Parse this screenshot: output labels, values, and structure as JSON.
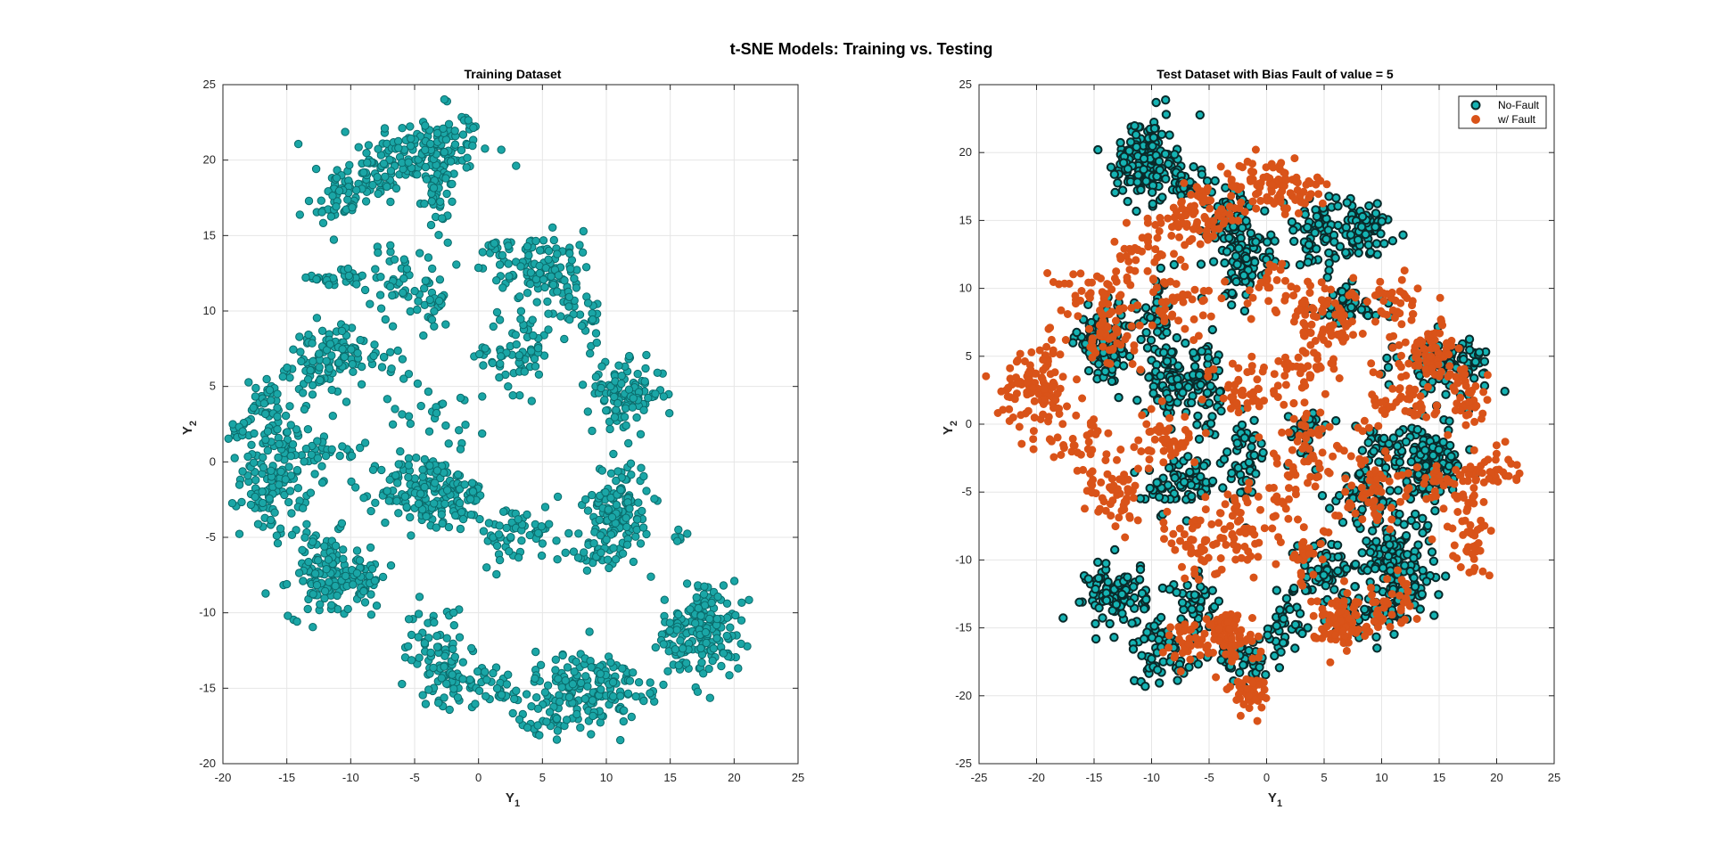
{
  "figure": {
    "title": "t-SNE Models: Training vs. Testing",
    "colors": {
      "nofault_face": "#1aa6a6",
      "nofault_edge": "#0b6b6b",
      "fault_face": "#d95319",
      "testnf_face": "#15b3b3",
      "testnf_edge": "#0a2a2a"
    }
  },
  "chart_data": [
    {
      "type": "scatter",
      "title": "Training Dataset",
      "xlabel": "Y",
      "xlabel_sub": "1",
      "ylabel": "Y",
      "ylabel_sub": "2",
      "xlim": [
        -20,
        25
      ],
      "ylim": [
        -20,
        25
      ],
      "xticks": [
        -20,
        -15,
        -10,
        -5,
        0,
        5,
        10,
        15,
        20,
        25
      ],
      "yticks": [
        -20,
        -15,
        -10,
        -5,
        0,
        5,
        10,
        15,
        20,
        25
      ],
      "grid": true,
      "series": [
        {
          "color": "#1aa6a6",
          "marker": "circle",
          "clusters": [
            {
              "x": -4,
              "y": 20.5,
              "sx": 2.5,
              "sy": 1.2,
              "n": 150
            },
            {
              "x": -9,
              "y": 18.5,
              "sx": 1.5,
              "sy": 0.9,
              "n": 70
            },
            {
              "x": -11.5,
              "y": 16.8,
              "sx": 1.0,
              "sy": 0.5,
              "n": 25
            },
            {
              "x": -3.5,
              "y": 17.5,
              "sx": 0.6,
              "sy": 1.3,
              "n": 30
            },
            {
              "x": -10.5,
              "y": 12.2,
              "sx": 1.2,
              "sy": 0.3,
              "n": 30
            },
            {
              "x": -5.5,
              "y": 12.0,
              "sx": 1.6,
              "sy": 1.3,
              "n": 55
            },
            {
              "x": -3.5,
              "y": 9.8,
              "sx": 0.5,
              "sy": 0.8,
              "n": 15
            },
            {
              "x": -12.5,
              "y": 6.5,
              "sx": 1.2,
              "sy": 1.2,
              "n": 80
            },
            {
              "x": -10,
              "y": 7.2,
              "sx": 1.0,
              "sy": 0.8,
              "n": 30
            },
            {
              "x": -16.5,
              "y": 3.5,
              "sx": 0.9,
              "sy": 1.0,
              "n": 40
            },
            {
              "x": -19,
              "y": 2.2,
              "sx": 0.6,
              "sy": 0.4,
              "n": 15
            },
            {
              "x": -16,
              "y": -1.0,
              "sx": 1.3,
              "sy": 2.0,
              "n": 140
            },
            {
              "x": -12,
              "y": 0.5,
              "sx": 1.5,
              "sy": 0.6,
              "n": 25
            },
            {
              "x": -12,
              "y": -7.5,
              "sx": 1.4,
              "sy": 1.4,
              "n": 120
            },
            {
              "x": -9.5,
              "y": -7.5,
              "sx": 1.2,
              "sy": 1.0,
              "n": 50
            },
            {
              "x": -4,
              "y": -2.0,
              "sx": 1.8,
              "sy": 1.3,
              "n": 160
            },
            {
              "x": -1,
              "y": -2.5,
              "sx": 1.0,
              "sy": 0.8,
              "n": 30
            },
            {
              "x": 4,
              "y": 13.0,
              "sx": 1.5,
              "sy": 1.0,
              "n": 60
            },
            {
              "x": 6.5,
              "y": 12.5,
              "sx": 1.2,
              "sy": 1.4,
              "n": 60
            },
            {
              "x": 8.5,
              "y": 9.5,
              "sx": 0.8,
              "sy": 1.0,
              "n": 20
            },
            {
              "x": 1,
              "y": 14.3,
              "sx": 0.8,
              "sy": 0.2,
              "n": 12
            },
            {
              "x": 3.5,
              "y": 7.5,
              "sx": 1.0,
              "sy": 1.5,
              "n": 55
            },
            {
              "x": 1,
              "y": 7.0,
              "sx": 0.7,
              "sy": 0.5,
              "n": 12
            },
            {
              "x": 11.5,
              "y": 4.5,
              "sx": 1.5,
              "sy": 1.0,
              "n": 110
            },
            {
              "x": 11,
              "y": -3.0,
              "sx": 1.2,
              "sy": 1.6,
              "n": 130
            },
            {
              "x": 9,
              "y": -6.0,
              "sx": 0.8,
              "sy": 0.9,
              "n": 30
            },
            {
              "x": 3.5,
              "y": -4.8,
              "sx": 1.8,
              "sy": 1.0,
              "n": 60
            },
            {
              "x": -3.5,
              "y": -12.5,
              "sx": 1.2,
              "sy": 1.5,
              "n": 60
            },
            {
              "x": -1.5,
              "y": -14.5,
              "sx": 1.5,
              "sy": 0.9,
              "n": 50
            },
            {
              "x": 2,
              "y": -15.0,
              "sx": 1.0,
              "sy": 0.7,
              "n": 25
            },
            {
              "x": 8.5,
              "y": -15.0,
              "sx": 2.0,
              "sy": 1.3,
              "n": 160
            },
            {
              "x": 5.5,
              "y": -17.3,
              "sx": 1.2,
              "sy": 0.4,
              "n": 25
            },
            {
              "x": 18,
              "y": -11.0,
              "sx": 1.3,
              "sy": 1.6,
              "n": 150
            },
            {
              "x": 15,
              "y": -12.0,
              "sx": 1.0,
              "sy": 1.2,
              "n": 40
            },
            {
              "x": 13,
              "y": -15.5,
              "sx": 0.5,
              "sy": 0.5,
              "n": 8
            },
            {
              "x": 16,
              "y": -4.8,
              "sx": 0.3,
              "sy": 0.2,
              "n": 6
            },
            {
              "x": -3.5,
              "y": 3.0,
              "sx": 2.0,
              "sy": 1.0,
              "n": 25
            },
            {
              "x": -7,
              "y": 6.8,
              "sx": 1.0,
              "sy": 0.5,
              "n": 15
            },
            {
              "x": -2.5,
              "y": 24.0,
              "sx": 0.1,
              "sy": 0.1,
              "n": 2
            },
            {
              "x": -1.0,
              "y": 22.7,
              "sx": 0.2,
              "sy": 0.1,
              "n": 4
            }
          ]
        }
      ]
    },
    {
      "type": "scatter",
      "title": "Test Dataset with Bias Fault of value = 5",
      "xlabel": "Y",
      "xlabel_sub": "1",
      "ylabel": "Y",
      "ylabel_sub": "2",
      "xlim": [
        -25,
        25
      ],
      "ylim": [
        -25,
        25
      ],
      "xticks": [
        -25,
        -20,
        -15,
        -10,
        -5,
        0,
        5,
        10,
        15,
        20,
        25
      ],
      "yticks": [
        -25,
        -20,
        -15,
        -10,
        -5,
        0,
        5,
        10,
        15,
        20,
        25
      ],
      "grid": true,
      "legend": {
        "placement": "top-right",
        "entries": [
          "No-Fault",
          "w/ Fault"
        ]
      },
      "series": [
        {
          "name": "No-Fault",
          "color": "#15b3b3",
          "marker": "circle",
          "clusters": [
            {
              "x": -10.5,
              "y": 19.5,
              "sx": 1.3,
              "sy": 1.5,
              "n": 160
            },
            {
              "x": -7,
              "y": 17.5,
              "sx": 1.5,
              "sy": 0.8,
              "n": 40
            },
            {
              "x": -3,
              "y": 15.0,
              "sx": 1.2,
              "sy": 1.2,
              "n": 70
            },
            {
              "x": -2,
              "y": 11.5,
              "sx": 1.2,
              "sy": 1.3,
              "n": 70
            },
            {
              "x": 4.5,
              "y": 14.0,
              "sx": 1.5,
              "sy": 1.3,
              "n": 70
            },
            {
              "x": 8.5,
              "y": 14.5,
              "sx": 1.5,
              "sy": 1.0,
              "n": 70
            },
            {
              "x": 7,
              "y": 8.5,
              "sx": 1.5,
              "sy": 0.8,
              "n": 50
            },
            {
              "x": -14,
              "y": 6.0,
              "sx": 1.3,
              "sy": 1.3,
              "n": 110
            },
            {
              "x": -9.5,
              "y": 7.5,
              "sx": 0.8,
              "sy": 1.5,
              "n": 40
            },
            {
              "x": -8,
              "y": 3.0,
              "sx": 1.3,
              "sy": 1.2,
              "n": 90
            },
            {
              "x": -5,
              "y": 2.5,
              "sx": 0.8,
              "sy": 1.5,
              "n": 40
            },
            {
              "x": -7.5,
              "y": -4.5,
              "sx": 1.5,
              "sy": 1.0,
              "n": 70
            },
            {
              "x": -2,
              "y": -2.5,
              "sx": 1.0,
              "sy": 1.5,
              "n": 50
            },
            {
              "x": 14,
              "y": -3.0,
              "sx": 1.6,
              "sy": 1.3,
              "n": 130
            },
            {
              "x": 11,
              "y": -2.0,
              "sx": 1.5,
              "sy": 0.8,
              "n": 40
            },
            {
              "x": 15.5,
              "y": 4.5,
              "sx": 2.0,
              "sy": 1.0,
              "n": 100
            },
            {
              "x": 11,
              "y": -9.5,
              "sx": 1.8,
              "sy": 1.5,
              "n": 110
            },
            {
              "x": 5.5,
              "y": -11.0,
              "sx": 1.5,
              "sy": 1.5,
              "n": 60
            },
            {
              "x": 8.5,
              "y": -5.5,
              "sx": 1.5,
              "sy": 1.0,
              "n": 50
            },
            {
              "x": -13,
              "y": -12.5,
              "sx": 1.3,
              "sy": 1.2,
              "n": 100
            },
            {
              "x": -9,
              "y": -17.0,
              "sx": 1.5,
              "sy": 1.2,
              "n": 60
            },
            {
              "x": -6,
              "y": -13.0,
              "sx": 1.2,
              "sy": 1.0,
              "n": 40
            },
            {
              "x": -2,
              "y": -17.5,
              "sx": 1.5,
              "sy": 0.8,
              "n": 40
            },
            {
              "x": 1.5,
              "y": -15.0,
              "sx": 1.0,
              "sy": 1.0,
              "n": 30
            },
            {
              "x": 8.5,
              "y": -14.0,
              "sx": 1.5,
              "sy": 1.0,
              "n": 40
            },
            {
              "x": 12,
              "y": -13.0,
              "sx": 1.0,
              "sy": 0.8,
              "n": 30
            },
            {
              "x": 3.5,
              "y": -0.5,
              "sx": 1.3,
              "sy": 1.0,
              "n": 30
            }
          ]
        },
        {
          "name": "w/ Fault",
          "color": "#d95319",
          "marker": "circle",
          "clusters": [
            {
              "x": 0.5,
              "y": 17.5,
              "sx": 2.5,
              "sy": 1.0,
              "n": 100
            },
            {
              "x": -5.5,
              "y": 15.0,
              "sx": 1.5,
              "sy": 1.3,
              "n": 70
            },
            {
              "x": -10.5,
              "y": 13.0,
              "sx": 1.8,
              "sy": 1.3,
              "n": 40
            },
            {
              "x": -15,
              "y": 10.0,
              "sx": 2.0,
              "sy": 0.8,
              "n": 40
            },
            {
              "x": -14,
              "y": 6.5,
              "sx": 1.3,
              "sy": 1.0,
              "n": 50
            },
            {
              "x": -20,
              "y": 3.0,
              "sx": 1.5,
              "sy": 1.6,
              "n": 110
            },
            {
              "x": -7.5,
              "y": 9.0,
              "sx": 1.8,
              "sy": 1.0,
              "n": 40
            },
            {
              "x": 0.5,
              "y": 10.0,
              "sx": 1.5,
              "sy": 1.0,
              "n": 30
            },
            {
              "x": 5.5,
              "y": 8.0,
              "sx": 1.8,
              "sy": 1.3,
              "n": 70
            },
            {
              "x": 11,
              "y": 9.0,
              "sx": 1.0,
              "sy": 1.0,
              "n": 30
            },
            {
              "x": 14,
              "y": 5.0,
              "sx": 1.5,
              "sy": 1.3,
              "n": 80
            },
            {
              "x": 17.5,
              "y": 2.0,
              "sx": 1.0,
              "sy": 1.2,
              "n": 40
            },
            {
              "x": 19,
              "y": -3.5,
              "sx": 1.3,
              "sy": 0.8,
              "n": 40
            },
            {
              "x": 17.5,
              "y": -8.5,
              "sx": 1.0,
              "sy": 1.5,
              "n": 40
            },
            {
              "x": 15,
              "y": -4.5,
              "sx": 1.8,
              "sy": 1.0,
              "n": 40
            },
            {
              "x": 12,
              "y": 1.5,
              "sx": 1.5,
              "sy": 1.0,
              "n": 40
            },
            {
              "x": 3.5,
              "y": 4.5,
              "sx": 1.5,
              "sy": 1.5,
              "n": 50
            },
            {
              "x": -1.5,
              "y": 2.5,
              "sx": 1.5,
              "sy": 1.3,
              "n": 50
            },
            {
              "x": -13,
              "y": -5.5,
              "sx": 1.3,
              "sy": 1.2,
              "n": 50
            },
            {
              "x": -16,
              "y": -1.5,
              "sx": 1.5,
              "sy": 1.5,
              "n": 40
            },
            {
              "x": -9,
              "y": -1.0,
              "sx": 1.5,
              "sy": 1.2,
              "n": 50
            },
            {
              "x": -6,
              "y": -8.5,
              "sx": 1.2,
              "sy": 1.5,
              "n": 50
            },
            {
              "x": -2.5,
              "y": -8.0,
              "sx": 1.0,
              "sy": 1.8,
              "n": 50
            },
            {
              "x": 1.5,
              "y": -5.0,
              "sx": 1.0,
              "sy": 1.5,
              "n": 30
            },
            {
              "x": 3.5,
              "y": -1.0,
              "sx": 1.5,
              "sy": 1.0,
              "n": 40
            },
            {
              "x": 8.5,
              "y": -5.0,
              "sx": 1.5,
              "sy": 1.3,
              "n": 50
            },
            {
              "x": 6.5,
              "y": -14.5,
              "sx": 1.3,
              "sy": 1.0,
              "n": 80
            },
            {
              "x": 10.5,
              "y": -13.0,
              "sx": 1.2,
              "sy": 1.0,
              "n": 40
            },
            {
              "x": -3.5,
              "y": -15.5,
              "sx": 1.3,
              "sy": 1.0,
              "n": 80
            },
            {
              "x": -1.5,
              "y": -19.8,
              "sx": 0.7,
              "sy": 0.6,
              "n": 50
            },
            {
              "x": -7,
              "y": -16.0,
              "sx": 1.0,
              "sy": 0.8,
              "n": 30
            },
            {
              "x": 3.5,
              "y": -9.5,
              "sx": 1.0,
              "sy": 1.0,
              "n": 30
            }
          ]
        }
      ]
    }
  ]
}
